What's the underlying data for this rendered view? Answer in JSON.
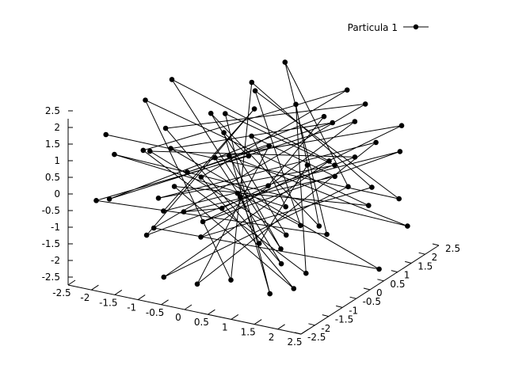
{
  "chart_data": {
    "type": "scatter",
    "projection": "3d",
    "title": "",
    "xlabel": "",
    "ylabel": "",
    "zlabel": "",
    "xlim": [
      -2.5,
      2.5
    ],
    "ylim": [
      -2.5,
      2.5
    ],
    "zlim": [
      -2.5,
      2.5
    ],
    "grid": false,
    "legend_position": "top-right",
    "x_ticks": [
      "-2.5",
      "-2",
      "-1.5",
      "-1",
      "-0.5",
      "0",
      "0.5",
      "1",
      "1.5",
      "2",
      "2.5"
    ],
    "y_ticks": [
      "-2.5",
      "-2",
      "-1.5",
      "-1",
      "-0.5",
      "0",
      "0.5",
      "1",
      "1.5",
      "2",
      "2.5"
    ],
    "z_ticks": [
      "-2.5",
      "-2",
      "-1.5",
      "-1",
      "-0.5",
      "0",
      "0.5",
      "1",
      "1.5",
      "2",
      "2.5"
    ],
    "series": [
      {
        "name": "Particula 1",
        "color": "#000000",
        "style": "linespoints",
        "marker": "filled-circle",
        "points": [
          [
            -2.31,
            -1.45,
            1.52
          ],
          [
            1.87,
            2.12,
            -1.08
          ],
          [
            -0.42,
            0.77,
            2.21
          ],
          [
            2.15,
            -1.93,
            0.36
          ],
          [
            -1.68,
            2.26,
            -2.04
          ],
          [
            0.94,
            -0.58,
            -1.87
          ],
          [
            -2.07,
            0.31,
            0.84
          ],
          [
            1.46,
            1.59,
            1.93
          ],
          [
            -0.85,
            -2.18,
            -0.47
          ],
          [
            2.33,
            0.62,
            -2.26
          ],
          [
            -1.22,
            -0.94,
            1.15
          ],
          [
            0.27,
            2.41,
            0.58
          ],
          [
            -2.44,
            1.72,
            -1.34
          ],
          [
            1.08,
            -1.26,
            2.08
          ],
          [
            -0.16,
            -1.77,
            -2.17
          ],
          [
            2.02,
            1.03,
            1.24
          ],
          [
            -1.91,
            -0.22,
            -0.93
          ],
          [
            0.63,
            1.88,
            -0.31
          ],
          [
            -0.69,
            0.14,
            1.78
          ],
          [
            1.72,
            -2.31,
            -1.62
          ],
          [
            -1.37,
            1.24,
            0.42
          ],
          [
            0.41,
            -0.87,
            1.37
          ],
          [
            -2.18,
            -2.02,
            -0.12
          ],
          [
            1.29,
            0.48,
            -1.45
          ],
          [
            -0.53,
            2.04,
            2.36
          ],
          [
            2.24,
            -0.35,
            0.71
          ],
          [
            -1.05,
            -1.48,
            -2.38
          ],
          [
            0.82,
            1.36,
            0.15
          ],
          [
            -2.26,
            0.86,
            1.96
          ],
          [
            1.57,
            -1.66,
            -0.66
          ],
          [
            -0.28,
            -0.41,
            0.93
          ],
          [
            1.95,
            2.29,
            -1.97
          ],
          [
            -1.59,
            -2.36,
            1.62
          ],
          [
            0.13,
            0.95,
            -1.21
          ],
          [
            -0.97,
            1.57,
            0.26
          ],
          [
            2.41,
            -1.12,
            1.48
          ],
          [
            -1.81,
            0.53,
            -1.71
          ],
          [
            0.56,
            -2.09,
            0.49
          ],
          [
            -0.37,
            1.16,
            -0.84
          ],
          [
            1.39,
            0.21,
            2.27
          ],
          [
            -2.39,
            -1.19,
            -0.58
          ],
          [
            1.01,
            1.97,
            1.07
          ],
          [
            -0.74,
            -0.66,
            -1.52
          ],
          [
            2.08,
            0.78,
            0.04
          ],
          [
            -1.44,
            2.37,
            1.31
          ],
          [
            0.35,
            -1.41,
            -2.09
          ],
          [
            -2.02,
            -0.51,
            2.14
          ],
          [
            1.63,
            1.42,
            -0.98
          ],
          [
            -0.61,
            -1.84,
            0.67
          ],
          [
            2.19,
            -2.24,
            -1.36
          ],
          [
            -1.15,
            0.04,
            -0.21
          ],
          [
            0.72,
            2.18,
            1.82
          ],
          [
            -1.77,
            -1.01,
            0.97
          ],
          [
            1.21,
            -0.14,
            -2.31
          ],
          [
            -0.09,
            1.69,
            1.41
          ],
          [
            1.84,
            -0.73,
            -0.39
          ],
          [
            -2.14,
            2.07,
            0.33
          ],
          [
            0.49,
            0.36,
            -1.64
          ],
          [
            -0.88,
            -2.27,
            1.88
          ],
          [
            1.52,
            1.11,
            0.61
          ],
          [
            -1.33,
            -1.63,
            -1.12
          ],
          [
            0.19,
            -0.29,
            2.41
          ],
          [
            -2.34,
            0.69,
            -1.93
          ],
          [
            1.76,
            2.34,
            0.19
          ],
          [
            -0.46,
            -1.06,
            -0.76
          ],
          [
            2.28,
            1.52,
            1.56
          ],
          [
            -1.62,
            1.34,
            -0.46
          ],
          [
            0.88,
            -1.97,
            0.87
          ],
          [
            -0.22,
            0.58,
            -2.22
          ],
          [
            1.44,
            -0.48,
            1.19
          ]
        ]
      }
    ]
  }
}
